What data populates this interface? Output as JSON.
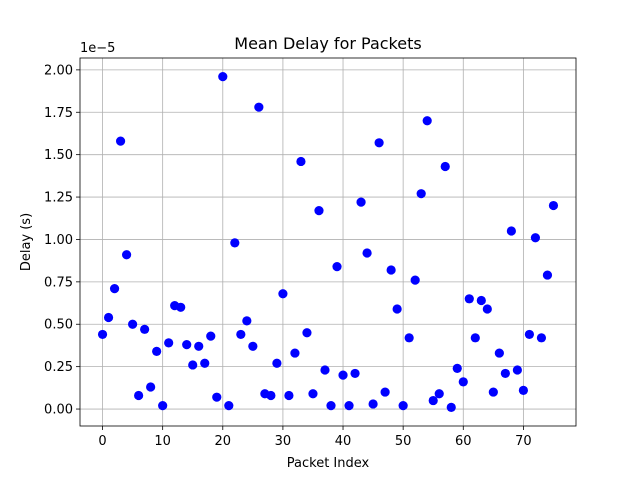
{
  "chart_data": {
    "type": "scatter",
    "title": "Mean Delay for Packets",
    "xlabel": "Packet Index",
    "ylabel": "Delay (s)",
    "y_scale_label": "1e−5",
    "xlim": [
      -3.75,
      78.75
    ],
    "ylim": [
      -1e-06,
      2.07e-05
    ],
    "x_ticks": [
      0,
      10,
      20,
      30,
      40,
      50,
      60,
      70
    ],
    "x_tick_labels": [
      "0",
      "10",
      "20",
      "30",
      "40",
      "50",
      "60",
      "70"
    ],
    "y_ticks": [
      0,
      2.5e-06,
      5e-06,
      7.5e-06,
      1e-05,
      1.25e-05,
      1.5e-05,
      1.75e-05,
      2e-05
    ],
    "y_tick_labels": [
      "0.00",
      "0.25",
      "0.50",
      "0.75",
      "1.00",
      "1.25",
      "1.50",
      "1.75",
      "2.00"
    ],
    "grid": true,
    "marker_color": "#0000ff",
    "series": [
      {
        "x": [
          0,
          1,
          2,
          3,
          4,
          5,
          6,
          7,
          8,
          9,
          10,
          11,
          12,
          13,
          14,
          15,
          16,
          17,
          18,
          19,
          20,
          21,
          22,
          23,
          24,
          25,
          26,
          27,
          28,
          29,
          30,
          31,
          32,
          33,
          34,
          35,
          36,
          37,
          38,
          39,
          40,
          41,
          42,
          43,
          44,
          45,
          46,
          47,
          48,
          49,
          50,
          51,
          52,
          53,
          54,
          55,
          56,
          57,
          58,
          59,
          60,
          61,
          62,
          63,
          64,
          65,
          66,
          67,
          68,
          69,
          70,
          71,
          72,
          73,
          74,
          75
        ],
        "y": [
          4.4e-06,
          5.4e-06,
          7.1e-06,
          1.58e-05,
          9.1e-06,
          5e-06,
          8e-07,
          4.7e-06,
          1.3e-06,
          3.4e-06,
          2e-07,
          3.9e-06,
          6.1e-06,
          6e-06,
          3.8e-06,
          2.6e-06,
          3.7e-06,
          2.7e-06,
          4.3e-06,
          7e-07,
          1.96e-05,
          2e-07,
          9.8e-06,
          4.4e-06,
          5.2e-06,
          3.7e-06,
          1.78e-05,
          9e-07,
          8e-07,
          2.7e-06,
          6.8e-06,
          8e-07,
          3.3e-06,
          1.46e-05,
          4.5e-06,
          9e-07,
          1.17e-05,
          2.3e-06,
          2e-07,
          8.4e-06,
          2e-06,
          2e-07,
          2.1e-06,
          1.22e-05,
          9.2e-06,
          3e-07,
          1.57e-05,
          1e-06,
          8.2e-06,
          5.9e-06,
          2e-07,
          4.2e-06,
          7.6e-06,
          1.27e-05,
          1.7e-05,
          5e-07,
          9e-07,
          1.43e-05,
          1e-07,
          2.4e-06,
          1.6e-06,
          6.5e-06,
          4.2e-06,
          6.4e-06,
          5.9e-06,
          1e-06,
          3.3e-06,
          2.1e-06,
          1.05e-05,
          2.3e-06,
          1.1e-06,
          4.4e-06,
          1.01e-05,
          4.2e-06,
          7.9e-06,
          1.2e-05
        ]
      }
    ]
  }
}
